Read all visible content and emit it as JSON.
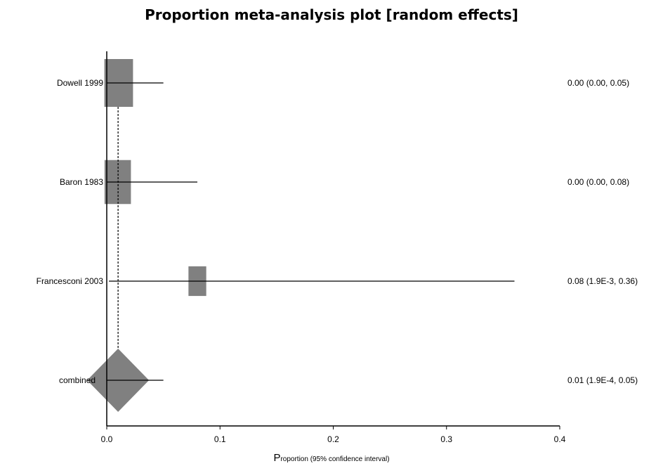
{
  "chart_data": {
    "type": "forest",
    "title": "Proportion meta-analysis plot [random effects]",
    "xlabel_first": "P",
    "xlabel_rest": "roportion",
    "xlabel_sub": " (95% confidence interval)",
    "xlim": [
      0,
      0.4
    ],
    "xticks": [
      0.0,
      0.1,
      0.2,
      0.3,
      0.4
    ],
    "xtick_labels": [
      "0.0",
      "0.1",
      "0.2",
      "0.3",
      "0.4"
    ],
    "studies": [
      {
        "label": "Dowell 1999",
        "estimate": 0.0,
        "lower": 0.0,
        "upper": 0.05,
        "text": "0.00 (0.00, 0.05)",
        "weight": 1.0
      },
      {
        "label": "Baron 1983",
        "estimate": 0.0,
        "lower": 0.0,
        "upper": 0.08,
        "text": "0.00 (0.00, 0.08)",
        "weight": 0.92
      },
      {
        "label": "Francesconi 2003",
        "estimate": 0.08,
        "lower": 0.0019,
        "upper": 0.36,
        "text": "0.08 (1.9E-3, 0.36)",
        "weight": 0.62
      }
    ],
    "combined": {
      "label": "combined",
      "estimate": 0.01,
      "lower": 0.00019,
      "upper": 0.05,
      "text": "0.01 (1.9E-4, 0.05)"
    },
    "colors": {
      "marker": "#808080",
      "line": "#000000"
    }
  }
}
